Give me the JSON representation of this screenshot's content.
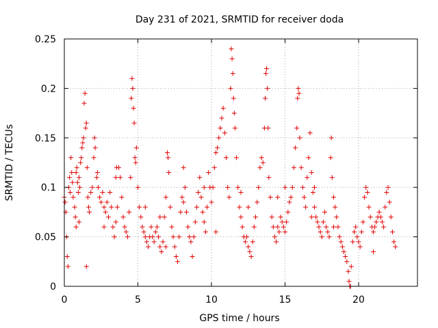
{
  "chart_data": {
    "type": "scatter",
    "title": "Day 231 of 2021, SRMTID for receiver doda",
    "xlabel": "GPS time / hours",
    "ylabel": "SRMTID / TECUs",
    "xlim": [
      0,
      24
    ],
    "ylim": [
      0,
      0.25
    ],
    "xticks": [
      0,
      5,
      10,
      15,
      20
    ],
    "xtick_labels": [
      "0",
      "5",
      "10",
      "15",
      "20"
    ],
    "yticks": [
      0,
      0.05,
      0.1,
      0.15,
      0.2,
      0.25
    ],
    "ytick_labels": [
      "0",
      "0.05",
      "0.1",
      "0.15",
      "0.2",
      "0.25"
    ],
    "grid": true,
    "marker": "+",
    "color": "#e00000",
    "series": [
      {
        "name": "SRMTID",
        "points": [
          [
            0.0,
            0.09
          ],
          [
            0.05,
            0.085
          ],
          [
            0.1,
            0.075
          ],
          [
            0.15,
            0.05
          ],
          [
            0.2,
            0.03
          ],
          [
            0.25,
            0.02
          ],
          [
            0.3,
            0.1
          ],
          [
            0.35,
            0.11
          ],
          [
            0.4,
            0.095
          ],
          [
            0.45,
            0.13
          ],
          [
            0.5,
            0.115
          ],
          [
            0.55,
            0.105
          ],
          [
            0.6,
            0.09
          ],
          [
            0.7,
            0.08
          ],
          [
            0.75,
            0.07
          ],
          [
            0.8,
            0.115
          ],
          [
            0.85,
            0.12
          ],
          [
            0.9,
            0.105
          ],
          [
            0.95,
            0.095
          ],
          [
            1.0,
            0.11
          ],
          [
            1.05,
            0.1
          ],
          [
            1.1,
            0.125
          ],
          [
            1.15,
            0.13
          ],
          [
            1.2,
            0.14
          ],
          [
            1.25,
            0.145
          ],
          [
            1.3,
            0.15
          ],
          [
            1.35,
            0.185
          ],
          [
            1.4,
            0.195
          ],
          [
            1.45,
            0.16
          ],
          [
            1.5,
            0.165
          ],
          [
            1.55,
            0.12
          ],
          [
            1.6,
            0.09
          ],
          [
            1.65,
            0.08
          ],
          [
            1.7,
            0.075
          ],
          [
            1.5,
            0.02
          ],
          [
            1.8,
            0.095
          ],
          [
            1.9,
            0.1
          ],
          [
            2.0,
            0.13
          ],
          [
            2.05,
            0.15
          ],
          [
            2.1,
            0.14
          ],
          [
            2.2,
            0.11
          ],
          [
            2.3,
            0.1
          ],
          [
            2.4,
            0.09
          ],
          [
            2.5,
            0.085
          ],
          [
            2.6,
            0.095
          ],
          [
            2.7,
            0.08
          ],
          [
            2.8,
            0.075
          ],
          [
            2.9,
            0.085
          ],
          [
            3.0,
            0.07
          ],
          [
            3.1,
            0.095
          ],
          [
            3.2,
            0.08
          ],
          [
            3.3,
            0.06
          ],
          [
            3.4,
            0.05
          ],
          [
            3.5,
            0.065
          ],
          [
            3.6,
            0.08
          ],
          [
            3.7,
            0.12
          ],
          [
            3.8,
            0.11
          ],
          [
            3.9,
            0.09
          ],
          [
            4.0,
            0.07
          ],
          [
            4.1,
            0.06
          ],
          [
            4.2,
            0.055
          ],
          [
            4.3,
            0.05
          ],
          [
            4.4,
            0.075
          ],
          [
            4.5,
            0.11
          ],
          [
            4.55,
            0.19
          ],
          [
            4.6,
            0.21
          ],
          [
            4.65,
            0.2
          ],
          [
            4.7,
            0.18
          ],
          [
            4.75,
            0.165
          ],
          [
            4.8,
            0.13
          ],
          [
            4.85,
            0.125
          ],
          [
            4.9,
            0.14
          ],
          [
            5.0,
            0.1
          ],
          [
            5.1,
            0.08
          ],
          [
            5.2,
            0.07
          ],
          [
            5.3,
            0.06
          ],
          [
            5.4,
            0.055
          ],
          [
            5.5,
            0.05
          ],
          [
            5.6,
            0.045
          ],
          [
            5.7,
            0.04
          ],
          [
            5.8,
            0.05
          ],
          [
            5.9,
            0.06
          ],
          [
            6.0,
            0.05
          ],
          [
            6.1,
            0.045
          ],
          [
            6.2,
            0.055
          ],
          [
            6.3,
            0.06
          ],
          [
            6.4,
            0.05
          ],
          [
            6.5,
            0.04
          ],
          [
            6.6,
            0.035
          ],
          [
            6.7,
            0.045
          ],
          [
            6.8,
            0.07
          ],
          [
            6.9,
            0.09
          ],
          [
            7.0,
            0.135
          ],
          [
            7.05,
            0.13
          ],
          [
            7.1,
            0.115
          ],
          [
            7.2,
            0.08
          ],
          [
            7.3,
            0.06
          ],
          [
            7.4,
            0.05
          ],
          [
            7.5,
            0.04
          ],
          [
            7.6,
            0.03
          ],
          [
            7.7,
            0.025
          ],
          [
            7.8,
            0.05
          ],
          [
            7.9,
            0.075
          ],
          [
            8.0,
            0.09
          ],
          [
            8.1,
            0.085
          ],
          [
            8.2,
            0.1
          ],
          [
            8.3,
            0.075
          ],
          [
            8.4,
            0.06
          ],
          [
            8.5,
            0.05
          ],
          [
            8.6,
            0.045
          ],
          [
            8.7,
            0.03
          ],
          [
            8.8,
            0.05
          ],
          [
            8.9,
            0.065
          ],
          [
            9.0,
            0.08
          ],
          [
            9.1,
            0.095
          ],
          [
            9.2,
            0.11
          ],
          [
            9.3,
            0.09
          ],
          [
            9.4,
            0.075
          ],
          [
            9.5,
            0.065
          ],
          [
            9.6,
            0.055
          ],
          [
            9.7,
            0.08
          ],
          [
            9.8,
            0.115
          ],
          [
            9.9,
            0.1
          ],
          [
            10.0,
            0.085
          ],
          [
            10.1,
            0.1
          ],
          [
            10.2,
            0.12
          ],
          [
            10.3,
            0.135
          ],
          [
            10.4,
            0.14
          ],
          [
            10.5,
            0.15
          ],
          [
            10.6,
            0.16
          ],
          [
            10.7,
            0.17
          ],
          [
            10.8,
            0.18
          ],
          [
            10.9,
            0.155
          ],
          [
            11.0,
            0.13
          ],
          [
            11.1,
            0.1
          ],
          [
            11.2,
            0.09
          ],
          [
            11.3,
            0.2
          ],
          [
            11.35,
            0.24
          ],
          [
            11.4,
            0.23
          ],
          [
            11.45,
            0.215
          ],
          [
            11.5,
            0.19
          ],
          [
            11.55,
            0.175
          ],
          [
            11.6,
            0.16
          ],
          [
            11.7,
            0.13
          ],
          [
            11.8,
            0.1
          ],
          [
            11.9,
            0.08
          ],
          [
            12.0,
            0.07
          ],
          [
            12.1,
            0.06
          ],
          [
            12.2,
            0.05
          ],
          [
            12.3,
            0.045
          ],
          [
            12.4,
            0.05
          ],
          [
            12.5,
            0.04
          ],
          [
            12.6,
            0.035
          ],
          [
            12.7,
            0.03
          ],
          [
            12.8,
            0.045
          ],
          [
            12.9,
            0.06
          ],
          [
            13.0,
            0.07
          ],
          [
            13.1,
            0.085
          ],
          [
            13.2,
            0.1
          ],
          [
            13.3,
            0.12
          ],
          [
            13.4,
            0.13
          ],
          [
            13.5,
            0.125
          ],
          [
            13.6,
            0.16
          ],
          [
            13.65,
            0.19
          ],
          [
            13.7,
            0.215
          ],
          [
            13.75,
            0.22
          ],
          [
            13.8,
            0.2
          ],
          [
            13.85,
            0.16
          ],
          [
            13.9,
            0.11
          ],
          [
            14.0,
            0.09
          ],
          [
            14.1,
            0.07
          ],
          [
            14.2,
            0.06
          ],
          [
            14.3,
            0.05
          ],
          [
            14.4,
            0.045
          ],
          [
            14.5,
            0.06
          ],
          [
            14.6,
            0.055
          ],
          [
            14.7,
            0.07
          ],
          [
            14.8,
            0.065
          ],
          [
            14.9,
            0.06
          ],
          [
            15.0,
            0.055
          ],
          [
            15.1,
            0.065
          ],
          [
            15.2,
            0.075
          ],
          [
            15.3,
            0.085
          ],
          [
            15.4,
            0.09
          ],
          [
            15.5,
            0.1
          ],
          [
            15.6,
            0.12
          ],
          [
            15.7,
            0.14
          ],
          [
            15.8,
            0.16
          ],
          [
            15.85,
            0.19
          ],
          [
            15.9,
            0.2
          ],
          [
            15.95,
            0.195
          ],
          [
            16.0,
            0.15
          ],
          [
            16.1,
            0.12
          ],
          [
            16.2,
            0.1
          ],
          [
            16.3,
            0.09
          ],
          [
            16.4,
            0.08
          ],
          [
            16.5,
            0.11
          ],
          [
            16.6,
            0.13
          ],
          [
            16.7,
            0.155
          ],
          [
            16.8,
            0.115
          ],
          [
            16.9,
            0.095
          ],
          [
            17.0,
            0.08
          ],
          [
            17.1,
            0.07
          ],
          [
            17.2,
            0.065
          ],
          [
            17.3,
            0.06
          ],
          [
            17.4,
            0.055
          ],
          [
            17.5,
            0.05
          ],
          [
            17.6,
            0.065
          ],
          [
            17.7,
            0.075
          ],
          [
            17.8,
            0.06
          ],
          [
            17.9,
            0.055
          ],
          [
            18.0,
            0.05
          ],
          [
            18.1,
            0.13
          ],
          [
            18.15,
            0.15
          ],
          [
            18.2,
            0.11
          ],
          [
            18.3,
            0.09
          ],
          [
            18.4,
            0.08
          ],
          [
            18.5,
            0.07
          ],
          [
            18.6,
            0.06
          ],
          [
            18.7,
            0.05
          ],
          [
            18.8,
            0.045
          ],
          [
            18.9,
            0.04
          ],
          [
            19.0,
            0.035
          ],
          [
            19.1,
            0.03
          ],
          [
            19.2,
            0.025
          ],
          [
            19.3,
            0.015
          ],
          [
            19.35,
            0.005
          ],
          [
            19.4,
            0.0
          ],
          [
            19.45,
            0.0
          ],
          [
            19.5,
            0.02
          ],
          [
            19.6,
            0.045
          ],
          [
            19.7,
            0.055
          ],
          [
            19.8,
            0.06
          ],
          [
            19.9,
            0.05
          ],
          [
            20.0,
            0.045
          ],
          [
            20.1,
            0.04
          ],
          [
            20.2,
            0.055
          ],
          [
            20.3,
            0.065
          ],
          [
            20.4,
            0.09
          ],
          [
            20.5,
            0.1
          ],
          [
            20.6,
            0.095
          ],
          [
            20.7,
            0.08
          ],
          [
            20.8,
            0.07
          ],
          [
            20.9,
            0.06
          ],
          [
            21.0,
            0.055
          ],
          [
            21.1,
            0.06
          ],
          [
            21.2,
            0.065
          ],
          [
            21.3,
            0.07
          ],
          [
            21.4,
            0.075
          ],
          [
            21.5,
            0.07
          ],
          [
            21.6,
            0.065
          ],
          [
            21.7,
            0.06
          ],
          [
            21.8,
            0.08
          ],
          [
            21.9,
            0.095
          ],
          [
            22.0,
            0.1
          ],
          [
            22.1,
            0.085
          ],
          [
            22.2,
            0.07
          ],
          [
            22.3,
            0.055
          ],
          [
            22.4,
            0.045
          ],
          [
            22.5,
            0.04
          ],
          [
            3.5,
            0.11
          ],
          [
            3.55,
            0.12
          ],
          [
            2.25,
            0.115
          ],
          [
            0.8,
            0.06
          ],
          [
            1.0,
            0.065
          ],
          [
            6.5,
            0.07
          ],
          [
            8.1,
            0.12
          ],
          [
            12.5,
            0.08
          ],
          [
            14.5,
            0.09
          ],
          [
            17.0,
            0.1
          ],
          [
            9.5,
            0.1
          ],
          [
            5.5,
            0.08
          ],
          [
            2.7,
            0.06
          ],
          [
            6.9,
            0.04
          ],
          [
            10.3,
            0.055
          ],
          [
            12.0,
            0.095
          ],
          [
            15.0,
            0.1
          ],
          [
            16.8,
            0.07
          ],
          [
            18.3,
            0.06
          ],
          [
            21.0,
            0.035
          ]
        ]
      }
    ]
  }
}
